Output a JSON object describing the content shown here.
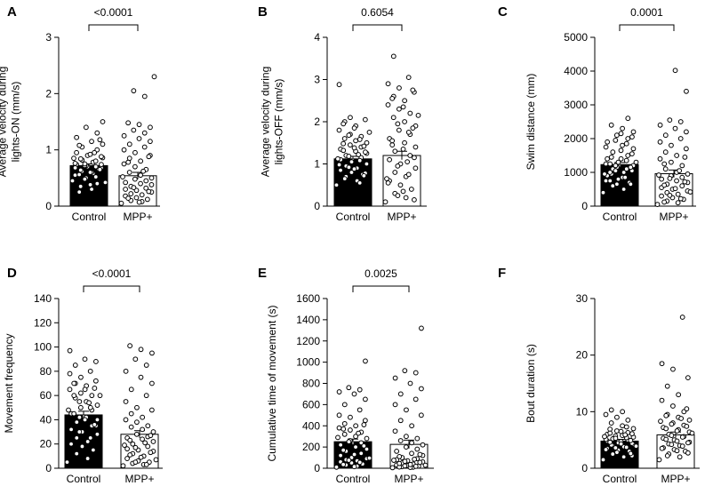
{
  "chart_data": [
    {
      "type": "bar",
      "panel": "A",
      "ylabel": "Average velocity during lights-ON (mm/s)",
      "ylabel_lines": [
        "Average velocity during",
        "lights-ON (mm/s)"
      ],
      "ylim": [
        0,
        3
      ],
      "yticks": [
        0,
        1,
        2,
        3
      ],
      "ytick_labels": [
        "0",
        "1",
        "2",
        "3"
      ],
      "categories": [
        "Control",
        "MPP+"
      ],
      "values": [
        0.72,
        0.54
      ],
      "sem": [
        0.03,
        0.06
      ],
      "bar_fill": [
        "#000000",
        "#ffffff"
      ],
      "pvalue": "<0.0001",
      "points": [
        [
          0.45,
          0.58,
          0.62,
          0.66,
          0.7,
          0.74,
          0.78,
          0.82,
          0.86,
          0.9,
          0.95,
          1.0,
          1.05,
          1.1,
          1.15,
          1.22,
          1.3,
          1.4,
          1.5,
          0.3,
          0.35,
          0.4,
          0.5,
          0.55,
          0.6,
          0.64,
          0.68,
          0.72,
          0.76,
          0.8,
          0.84,
          0.88,
          0.92,
          0.68,
          0.7,
          0.72,
          0.74,
          0.6,
          0.56,
          0.52,
          0.48,
          0.42,
          0.38,
          0.25,
          0.65,
          0.75,
          0.85,
          0.95,
          1.08,
          1.18
        ],
        [
          0.05,
          0.08,
          0.1,
          0.12,
          0.15,
          0.18,
          0.2,
          0.22,
          0.25,
          0.28,
          0.3,
          0.32,
          0.35,
          0.38,
          0.4,
          0.42,
          0.45,
          0.48,
          0.5,
          0.55,
          0.6,
          0.65,
          0.7,
          0.75,
          0.8,
          0.85,
          0.9,
          0.95,
          1.0,
          1.05,
          1.1,
          1.15,
          1.2,
          1.25,
          1.3,
          1.35,
          1.4,
          1.45,
          1.48,
          1.95,
          2.05,
          2.3,
          0.07,
          0.14,
          0.26,
          0.33,
          0.52,
          0.62,
          0.78,
          0.88
        ]
      ]
    },
    {
      "type": "bar",
      "panel": "B",
      "ylabel": "Average velocity during lights-OFF (mm/s)",
      "ylabel_lines": [
        "Average velocity during",
        "lights-OFF (mm/s)"
      ],
      "ylim": [
        0,
        4
      ],
      "yticks": [
        0,
        1,
        2,
        3,
        4
      ],
      "ytick_labels": [
        "0",
        "1",
        "2",
        "3",
        "4"
      ],
      "categories": [
        "Control",
        "MPP+"
      ],
      "values": [
        1.12,
        1.2
      ],
      "sem": [
        0.06,
        0.1
      ],
      "bar_fill": [
        "#000000",
        "#ffffff"
      ],
      "pvalue": "0.6054",
      "points": [
        [
          0.5,
          0.6,
          0.7,
          0.75,
          0.8,
          0.85,
          0.9,
          0.95,
          1.0,
          1.05,
          1.1,
          1.15,
          1.2,
          1.25,
          1.3,
          1.35,
          1.4,
          1.45,
          1.5,
          1.55,
          1.6,
          1.65,
          1.7,
          1.8,
          1.9,
          2.0,
          2.05,
          2.1,
          2.88,
          0.55,
          0.65,
          0.78,
          0.88,
          0.98,
          1.08,
          1.18,
          1.28,
          1.38,
          1.48,
          1.58,
          1.68,
          1.75,
          1.85,
          1.95,
          0.72,
          0.92,
          1.12,
          1.22,
          1.32,
          1.42
        ],
        [
          0.1,
          0.2,
          0.3,
          0.4,
          0.5,
          0.6,
          0.7,
          0.8,
          0.9,
          1.0,
          1.1,
          1.2,
          1.3,
          1.4,
          1.5,
          1.6,
          1.7,
          1.8,
          1.9,
          2.0,
          2.1,
          2.2,
          2.3,
          2.4,
          2.5,
          2.6,
          2.7,
          2.8,
          2.9,
          3.05,
          3.55,
          0.15,
          0.35,
          0.55,
          0.75,
          0.95,
          1.15,
          1.35,
          1.55,
          1.75,
          1.95,
          2.15,
          2.35,
          2.55,
          2.75,
          0.25,
          0.65,
          1.05,
          1.45,
          1.85
        ]
      ]
    },
    {
      "type": "bar",
      "panel": "C",
      "ylabel": "Swim distance (mm)",
      "ylabel_lines": [
        "Swim distance (mm)"
      ],
      "ylim": [
        0,
        5000
      ],
      "yticks": [
        0,
        1000,
        2000,
        3000,
        4000,
        5000
      ],
      "ytick_labels": [
        "0",
        "1000",
        "2000",
        "3000",
        "4000",
        "5000"
      ],
      "categories": [
        "Control",
        "MPP+"
      ],
      "values": [
        1230,
        960
      ],
      "sem": [
        60,
        110
      ],
      "bar_fill": [
        "#000000",
        "#ffffff"
      ],
      "pvalue": "0.0001",
      "points": [
        [
          400,
          500,
          600,
          700,
          800,
          900,
          1000,
          1100,
          1200,
          1300,
          1400,
          1500,
          1600,
          1700,
          1800,
          1900,
          2000,
          2100,
          2200,
          2300,
          2400,
          2600,
          650,
          750,
          850,
          950,
          1050,
          1150,
          1250,
          1350,
          1450,
          1550,
          1650,
          1750,
          1850,
          1950,
          2050,
          2150,
          1000,
          1100,
          1200,
          1300,
          1400,
          1250,
          1150,
          1050,
          950,
          850,
          750,
          650
        ],
        [
          50,
          100,
          150,
          200,
          250,
          300,
          350,
          400,
          450,
          500,
          550,
          600,
          650,
          700,
          750,
          800,
          850,
          900,
          950,
          1000,
          1100,
          1200,
          1300,
          1400,
          1500,
          1600,
          1700,
          1800,
          1900,
          2000,
          2100,
          2200,
          2300,
          2400,
          2500,
          2550,
          3400,
          4020,
          120,
          220,
          320,
          420,
          520,
          620,
          720,
          820,
          920,
          1050,
          1250,
          1450
        ]
      ]
    },
    {
      "type": "bar",
      "panel": "D",
      "ylabel": "Movement frequency",
      "ylabel_lines": [
        "Movement frequency"
      ],
      "ylim": [
        0,
        140
      ],
      "yticks": [
        0,
        20,
        40,
        60,
        80,
        100,
        120,
        140
      ],
      "ytick_labels": [
        "0",
        "20",
        "40",
        "60",
        "80",
        "100",
        "120",
        "140"
      ],
      "categories": [
        "Control",
        "MPP+"
      ],
      "values": [
        44,
        28
      ],
      "sem": [
        3,
        3
      ],
      "bar_fill": [
        "#000000",
        "#ffffff"
      ],
      "pvalue": "<0.0001",
      "points": [
        [
          5,
          8,
          12,
          15,
          18,
          20,
          22,
          25,
          28,
          30,
          32,
          35,
          38,
          40,
          42,
          45,
          48,
          50,
          52,
          55,
          58,
          60,
          62,
          65,
          68,
          70,
          72,
          75,
          78,
          80,
          85,
          88,
          90,
          97,
          25,
          30,
          35,
          40,
          45,
          50,
          55,
          60,
          65,
          70,
          36,
          42,
          48,
          54,
          60,
          66
        ],
        [
          2,
          3,
          4,
          5,
          6,
          8,
          10,
          12,
          14,
          15,
          16,
          18,
          20,
          22,
          24,
          25,
          26,
          28,
          30,
          32,
          34,
          35,
          38,
          40,
          42,
          45,
          48,
          50,
          55,
          60,
          65,
          70,
          75,
          80,
          85,
          90,
          95,
          98,
          101,
          3,
          5,
          7,
          9,
          11,
          13,
          17,
          19,
          21,
          23,
          27
        ]
      ]
    },
    {
      "type": "bar",
      "panel": "E",
      "ylabel": "Cumulative time of movement (s)",
      "ylabel_lines": [
        "Cumulative time of movement (s)"
      ],
      "ylim": [
        0,
        1600
      ],
      "yticks": [
        0,
        200,
        400,
        600,
        800,
        1000,
        1200,
        1400,
        1600
      ],
      "ytick_labels": [
        "0",
        "200",
        "400",
        "600",
        "800",
        "1000",
        "1200",
        "1400",
        "1600"
      ],
      "categories": [
        "Control",
        "MPP+"
      ],
      "values": [
        250,
        225
      ],
      "sem": [
        25,
        40
      ],
      "bar_fill": [
        "#000000",
        "#ffffff"
      ],
      "pvalue": "0.0025",
      "points": [
        [
          10,
          20,
          30,
          40,
          50,
          60,
          70,
          80,
          90,
          100,
          120,
          140,
          160,
          180,
          200,
          220,
          240,
          260,
          280,
          300,
          320,
          340,
          360,
          380,
          400,
          420,
          450,
          480,
          500,
          550,
          600,
          650,
          700,
          720,
          740,
          760,
          1010,
          15,
          35,
          55,
          75,
          95,
          130,
          170,
          210,
          250,
          290,
          330,
          370,
          410
        ],
        [
          5,
          10,
          15,
          20,
          25,
          30,
          40,
          50,
          60,
          70,
          80,
          90,
          100,
          120,
          140,
          160,
          180,
          200,
          220,
          240,
          260,
          280,
          300,
          350,
          400,
          450,
          500,
          550,
          600,
          650,
          700,
          750,
          800,
          850,
          900,
          920,
          1320,
          8,
          12,
          18,
          22,
          28,
          35,
          45,
          55,
          65,
          75,
          85,
          110,
          130
        ]
      ]
    },
    {
      "type": "bar",
      "panel": "F",
      "ylabel": "Bout duration (s)",
      "ylabel_lines": [
        "Bout duration (s)"
      ],
      "ylim": [
        0,
        30
      ],
      "yticks": [
        0,
        10,
        20,
        30
      ],
      "ytick_labels": [
        "0",
        "10",
        "20",
        "30"
      ],
      "categories": [
        "Control",
        "MPP+"
      ],
      "values": [
        4.8,
        5.9
      ],
      "sem": [
        0.3,
        0.5
      ],
      "bar_fill": [
        "#000000",
        "#ffffff"
      ],
      "pvalue": "",
      "points": [
        [
          1.5,
          2.0,
          2.5,
          3.0,
          3.2,
          3.5,
          3.8,
          4.0,
          4.2,
          4.5,
          4.8,
          5.0,
          5.2,
          5.5,
          5.8,
          6.0,
          6.3,
          6.6,
          7.0,
          7.5,
          8.0,
          8.5,
          9.0,
          9.5,
          10.0,
          10.3,
          2.2,
          2.8,
          3.3,
          3.7,
          4.1,
          4.4,
          4.7,
          5.1,
          5.4,
          5.7,
          6.1,
          6.5,
          6.9,
          7.3,
          3.6,
          3.9,
          4.3,
          4.6,
          4.9,
          5.3,
          5.6,
          5.9,
          6.2,
          2.6
        ],
        [
          1.5,
          2.0,
          2.5,
          3.0,
          3.3,
          3.6,
          4.0,
          4.3,
          4.6,
          5.0,
          5.3,
          5.6,
          6.0,
          6.4,
          6.8,
          7.2,
          7.6,
          8.0,
          8.5,
          9.0,
          9.5,
          10.0,
          11.0,
          12.0,
          13.0,
          14.5,
          16.0,
          17.5,
          18.5,
          26.7,
          2.2,
          2.7,
          3.1,
          3.5,
          3.9,
          4.2,
          4.5,
          4.8,
          5.1,
          5.5,
          5.8,
          6.2,
          6.6,
          7.0,
          7.4,
          7.8,
          8.3,
          8.8,
          9.3,
          10.5
        ]
      ]
    }
  ]
}
